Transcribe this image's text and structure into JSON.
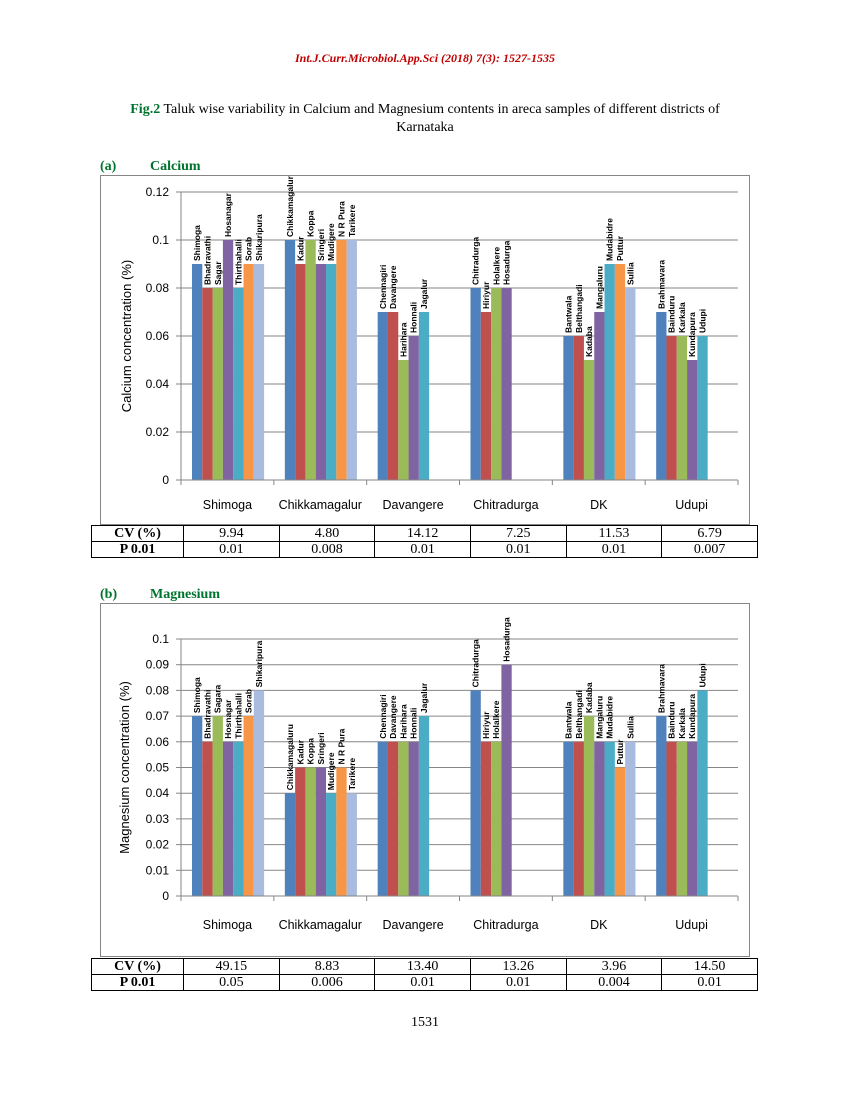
{
  "header": {
    "journal": "Int.J.Curr.Microbiol.App.Sci (2018) 7(3): 1527-1535"
  },
  "figure": {
    "label": "Fig.2",
    "caption": " Taluk wise variability in Calcium and Magnesium contents in areca samples of different districts of Karnataka"
  },
  "panels": [
    {
      "letter": "(a)",
      "name": "Calcium"
    },
    {
      "letter": "(b)",
      "name": "Magnesium"
    }
  ],
  "palette": [
    "#4f81bd",
    "#c0504d",
    "#9bbb59",
    "#8064a2",
    "#4bacc6",
    "#f79646",
    "#a9bce0"
  ],
  "chart_data": [
    {
      "type": "bar",
      "title": "",
      "xlabel": "",
      "ylabel": "Calcium concentration (%)",
      "ylim": [
        0,
        0.12
      ],
      "yticks": [
        "0",
        "0.02",
        "0.04",
        "0.06",
        "0.08",
        "0.1",
        "0.12"
      ],
      "grid": true,
      "categories": [
        "Shimoga",
        "Chikkamagalur",
        "Davangere",
        "Chitradurga",
        "DK",
        "Udupi"
      ],
      "groups": [
        {
          "district": "Shimoga",
          "bars": [
            {
              "label": "Shimoga",
              "value": 0.09
            },
            {
              "label": "Bhadravathi",
              "value": 0.08
            },
            {
              "label": "Sagar",
              "value": 0.08
            },
            {
              "label": "Hosanagar",
              "value": 0.1
            },
            {
              "label": "Thirthahalli",
              "value": 0.08
            },
            {
              "label": "Sorab",
              "value": 0.09
            },
            {
              "label": "Shikaripura",
              "value": 0.09
            }
          ]
        },
        {
          "district": "Chikkamagalur",
          "bars": [
            {
              "label": "Chikkamagalur",
              "value": 0.1
            },
            {
              "label": "Kadur",
              "value": 0.09
            },
            {
              "label": "Koppa",
              "value": 0.1
            },
            {
              "label": "Sringeri",
              "value": 0.09
            },
            {
              "label": "Mudigere",
              "value": 0.09
            },
            {
              "label": "N R Pura",
              "value": 0.1
            },
            {
              "label": "Tarikere",
              "value": 0.1
            }
          ]
        },
        {
          "district": "Davangere",
          "bars": [
            {
              "label": "Chennagiri",
              "value": 0.07
            },
            {
              "label": "Davangere",
              "value": 0.07
            },
            {
              "label": "Harihara",
              "value": 0.05
            },
            {
              "label": "Honnali",
              "value": 0.06
            },
            {
              "label": "Jagalur",
              "value": 0.07
            }
          ]
        },
        {
          "district": "Chitradurga",
          "bars": [
            {
              "label": "Chitradurga",
              "value": 0.08
            },
            {
              "label": "Hiriyur",
              "value": 0.07
            },
            {
              "label": "Holalkere",
              "value": 0.08
            },
            {
              "label": "Hosadurga",
              "value": 0.08
            }
          ]
        },
        {
          "district": "DK",
          "bars": [
            {
              "label": "Bantwala",
              "value": 0.06
            },
            {
              "label": "Belthangadi",
              "value": 0.06
            },
            {
              "label": "Kadaba",
              "value": 0.05
            },
            {
              "label": "Mangaluru",
              "value": 0.07
            },
            {
              "label": "Mudabidre",
              "value": 0.09
            },
            {
              "label": "Puttur",
              "value": 0.09
            },
            {
              "label": "Sullia",
              "value": 0.08
            }
          ]
        },
        {
          "district": "Udupi",
          "bars": [
            {
              "label": "Brahmavara",
              "value": 0.07
            },
            {
              "label": "Bainduru",
              "value": 0.06
            },
            {
              "label": "Karkala",
              "value": 0.06
            },
            {
              "label": "Kundapura",
              "value": 0.05
            },
            {
              "label": "Udupi",
              "value": 0.06
            }
          ]
        }
      ],
      "stats": {
        "rows": [
          {
            "name": "CV (%)",
            "values": [
              "9.94",
              "4.80",
              "14.12",
              "7.25",
              "11.53",
              "6.79"
            ]
          },
          {
            "name": "P 0.01",
            "values": [
              "0.01",
              "0.008",
              "0.01",
              "0.01",
              "0.01",
              "0.007"
            ]
          }
        ]
      }
    },
    {
      "type": "bar",
      "title": "",
      "xlabel": "",
      "ylabel": "Magnesium concentration (%)",
      "ylim": [
        0,
        0.1
      ],
      "yticks": [
        "0",
        "0.01",
        "0.02",
        "0.03",
        "0.04",
        "0.05",
        "0.06",
        "0.07",
        "0.08",
        "0.09",
        "0.1"
      ],
      "grid": true,
      "categories": [
        "Shimoga",
        "Chikkamagalur",
        "Davangere",
        "Chitradurga",
        "DK",
        "Udupi"
      ],
      "groups": [
        {
          "district": "Shimoga",
          "bars": [
            {
              "label": "Shimoga",
              "value": 0.07
            },
            {
              "label": "Bhadravathi",
              "value": 0.06
            },
            {
              "label": "Sagara",
              "value": 0.07
            },
            {
              "label": "Hosnagar",
              "value": 0.06
            },
            {
              "label": "Thirthahalli",
              "value": 0.06
            },
            {
              "label": "Sorab",
              "value": 0.07
            },
            {
              "label": "Shikaripura",
              "value": 0.08
            }
          ]
        },
        {
          "district": "Chikkamagalur",
          "bars": [
            {
              "label": "Chikkamagaluru",
              "value": 0.04
            },
            {
              "label": "Kadur",
              "value": 0.05
            },
            {
              "label": "Koppa",
              "value": 0.05
            },
            {
              "label": "Sringeri",
              "value": 0.05
            },
            {
              "label": "Mudigere",
              "value": 0.04
            },
            {
              "label": "N R Pura",
              "value": 0.05
            },
            {
              "label": "Tarikere",
              "value": 0.04
            }
          ]
        },
        {
          "district": "Davangere",
          "bars": [
            {
              "label": "Chennagiri",
              "value": 0.06
            },
            {
              "label": "Davangere",
              "value": 0.06
            },
            {
              "label": "Harihara",
              "value": 0.06
            },
            {
              "label": "Honnali",
              "value": 0.06
            },
            {
              "label": "Jagalur",
              "value": 0.07
            }
          ]
        },
        {
          "district": "Chitradurga",
          "bars": [
            {
              "label": "Chitradurga",
              "value": 0.08
            },
            {
              "label": "Hiriyur",
              "value": 0.06
            },
            {
              "label": "Holalkere",
              "value": 0.06
            },
            {
              "label": "Hosadurga",
              "value": 0.09
            }
          ]
        },
        {
          "district": "DK",
          "bars": [
            {
              "label": "Bantwala",
              "value": 0.06
            },
            {
              "label": "Belthangadi",
              "value": 0.06
            },
            {
              "label": "Kadaba",
              "value": 0.07
            },
            {
              "label": "Mangaluru",
              "value": 0.06
            },
            {
              "label": "Mudabidre",
              "value": 0.06
            },
            {
              "label": "Puttur",
              "value": 0.05
            },
            {
              "label": "Sullia",
              "value": 0.06
            }
          ]
        },
        {
          "district": "Udupi",
          "bars": [
            {
              "label": "Brahmavara",
              "value": 0.07
            },
            {
              "label": "Bainduru",
              "value": 0.06
            },
            {
              "label": "Karkala",
              "value": 0.06
            },
            {
              "label": "Kundapura",
              "value": 0.06
            },
            {
              "label": "Udupi",
              "value": 0.08
            }
          ]
        }
      ],
      "stats": {
        "rows": [
          {
            "name": "CV (%)",
            "values": [
              "49.15",
              "8.83",
              "13.40",
              "13.26",
              "3.96",
              "14.50"
            ]
          },
          {
            "name": "P 0.01",
            "values": [
              "0.05",
              "0.006",
              "0.01",
              "0.01",
              "0.004",
              "0.01"
            ]
          }
        ]
      }
    }
  ],
  "footer": {
    "page_number": "1531"
  }
}
